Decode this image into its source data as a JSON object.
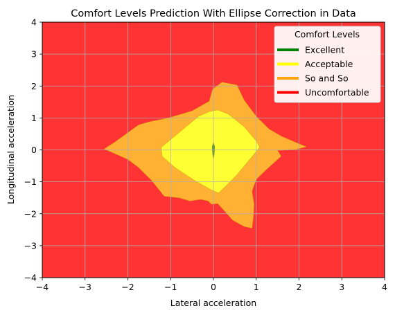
{
  "chart_data": {
    "type": "contour",
    "title": "Comfort Levels Prediction With Ellipse Correction in Data",
    "xlabel": "Lateral acceleration",
    "ylabel": "Longitudinal acceleration",
    "xlim": [
      -4,
      4
    ],
    "ylim": [
      -4,
      4
    ],
    "xticks": [
      -4,
      -3,
      -2,
      -1,
      0,
      1,
      2,
      3,
      4
    ],
    "yticks": [
      -4,
      -3,
      -2,
      -1,
      0,
      1,
      2,
      3,
      4
    ],
    "xtick_labels": [
      "−4",
      "−3",
      "−2",
      "−1",
      "0",
      "1",
      "2",
      "3",
      "4"
    ],
    "ytick_labels": [
      "−4",
      "−3",
      "−2",
      "−1",
      "0",
      "1",
      "2",
      "3",
      "4"
    ],
    "grid": true,
    "legend": {
      "title": "Comfort Levels",
      "placement": "top-right",
      "entries": [
        {
          "label": "Excellent",
          "color": "#008000"
        },
        {
          "label": "Acceptable",
          "color": "#ffff00"
        },
        {
          "label": "So and So",
          "color": "#ffa500"
        },
        {
          "label": "Uncomfortable",
          "color": "#ff0000"
        }
      ]
    },
    "background_region": {
      "label": "Uncomfortable",
      "color": "#ff3333"
    },
    "regions": [
      {
        "label": "So and So",
        "color": "#ffb133",
        "polygon": [
          [
            -2.55,
            0.03
          ],
          [
            -2.3,
            0.25
          ],
          [
            -1.75,
            0.78
          ],
          [
            -1.5,
            0.88
          ],
          [
            -1.05,
            1.0
          ],
          [
            -0.5,
            1.22
          ],
          [
            -0.1,
            1.52
          ],
          [
            -0.02,
            1.9
          ],
          [
            0.2,
            2.12
          ],
          [
            0.55,
            2.03
          ],
          [
            0.72,
            1.55
          ],
          [
            1.0,
            1.05
          ],
          [
            1.3,
            0.65
          ],
          [
            1.6,
            0.42
          ],
          [
            1.95,
            0.22
          ],
          [
            2.17,
            0.1
          ],
          [
            1.95,
            0.02
          ],
          [
            1.5,
            -0.02
          ],
          [
            1.58,
            -0.2
          ],
          [
            1.25,
            -0.6
          ],
          [
            1.0,
            -0.92
          ],
          [
            0.9,
            -1.3
          ],
          [
            0.95,
            -1.7
          ],
          [
            0.93,
            -2.15
          ],
          [
            0.9,
            -2.45
          ],
          [
            0.72,
            -2.4
          ],
          [
            0.45,
            -2.2
          ],
          [
            0.25,
            -1.9
          ],
          [
            0.1,
            -1.68
          ],
          [
            -0.05,
            -1.7
          ],
          [
            -0.12,
            -1.6
          ],
          [
            -0.3,
            -1.55
          ],
          [
            -0.55,
            -1.6
          ],
          [
            -0.8,
            -1.5
          ],
          [
            -1.15,
            -1.45
          ],
          [
            -1.45,
            -0.95
          ],
          [
            -1.75,
            -0.55
          ],
          [
            -2.0,
            -0.3
          ],
          [
            -2.3,
            -0.12
          ]
        ]
      },
      {
        "label": "Acceptable",
        "color": "#ffff33",
        "polygon": [
          [
            -1.22,
            0.08
          ],
          [
            -0.75,
            0.6
          ],
          [
            -0.35,
            1.05
          ],
          [
            -0.1,
            1.2
          ],
          [
            0.1,
            1.25
          ],
          [
            0.35,
            1.12
          ],
          [
            0.72,
            0.72
          ],
          [
            1.0,
            0.28
          ],
          [
            1.08,
            0.08
          ],
          [
            1.0,
            -0.05
          ],
          [
            0.88,
            -0.25
          ],
          [
            0.55,
            -0.78
          ],
          [
            0.3,
            -1.12
          ],
          [
            0.12,
            -1.35
          ],
          [
            -0.05,
            -1.25
          ],
          [
            -0.45,
            -0.95
          ],
          [
            -0.9,
            -0.55
          ],
          [
            -1.2,
            -0.2
          ]
        ]
      },
      {
        "label": "Excellent",
        "color": "#2f8f2f",
        "polygon": [
          [
            0.0,
            0.25
          ],
          [
            0.03,
            0.1
          ],
          [
            0.02,
            -0.15
          ],
          [
            0.0,
            -0.3
          ],
          [
            -0.02,
            -0.15
          ],
          [
            -0.03,
            0.1
          ]
        ]
      }
    ]
  }
}
